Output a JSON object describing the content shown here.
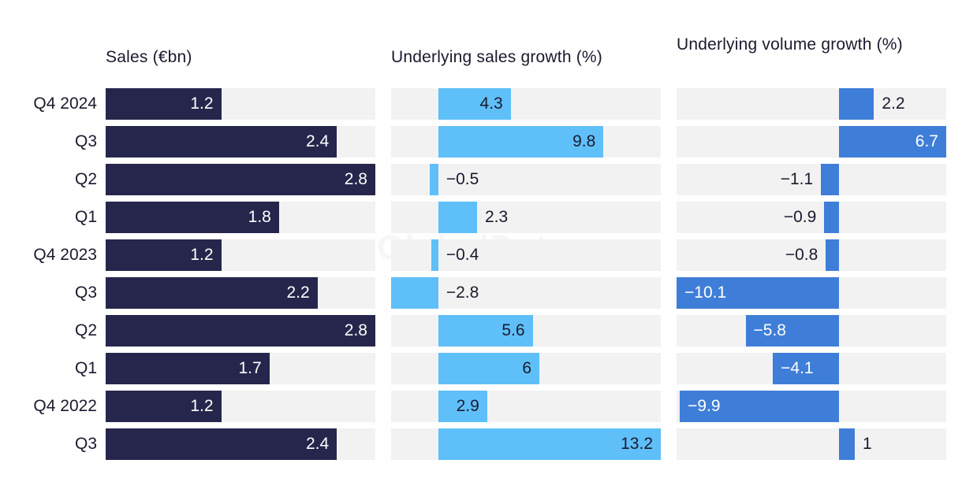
{
  "watermark": "GlobalData",
  "colors": {
    "sales": "#26264d",
    "sales_growth": "#5fbff8",
    "volume_growth": "#3f7ed8",
    "track": "#f2f2f2",
    "text_dark": "#1a1a2e",
    "text_light": "#ffffff"
  },
  "chart_data": [
    {
      "type": "bar",
      "orientation": "horizontal",
      "title": "Sales (€bn)",
      "categories": [
        "Q4 2024",
        "Q3",
        "Q2",
        "Q1",
        "Q4 2023",
        "Q3",
        "Q2",
        "Q1",
        "Q4 2022",
        "Q3"
      ],
      "values": [
        1.2,
        2.4,
        2.8,
        1.8,
        1.2,
        2.2,
        2.8,
        1.7,
        1.2,
        2.4
      ],
      "labels": [
        "1.2",
        "2.4",
        "2.8",
        "1.8",
        "1.2",
        "2.2",
        "2.8",
        "1.7",
        "1.2",
        "2.4"
      ],
      "xlim": [
        0,
        2.8
      ]
    },
    {
      "type": "bar",
      "orientation": "horizontal",
      "title": "Underlying sales growth (%)",
      "categories": [
        "Q4 2024",
        "Q3",
        "Q2",
        "Q1",
        "Q4 2023",
        "Q3",
        "Q2",
        "Q1",
        "Q4 2022",
        "Q3"
      ],
      "values": [
        4.3,
        9.8,
        -0.5,
        2.3,
        -0.4,
        -2.8,
        5.6,
        6,
        2.9,
        13.2
      ],
      "labels": [
        "4.3",
        "9.8",
        "−0.5",
        "2.3",
        "−0.4",
        "−2.8",
        "5.6",
        "6",
        "2.9",
        "13.2"
      ],
      "xlim": [
        -2.8,
        13.2
      ]
    },
    {
      "type": "bar",
      "orientation": "horizontal",
      "title": "Underlying volume growth (%)",
      "categories": [
        "Q4 2024",
        "Q3",
        "Q2",
        "Q1",
        "Q4 2023",
        "Q3",
        "Q2",
        "Q1",
        "Q4 2022",
        "Q3"
      ],
      "values": [
        2.2,
        6.7,
        -1.1,
        -0.9,
        -0.8,
        -10.1,
        -5.8,
        -4.1,
        -9.9,
        1
      ],
      "labels": [
        "2.2",
        "6.7",
        "−1.1",
        "−0.9",
        "−0.8",
        "−10.1",
        "−5.8",
        "−4.1",
        "−9.9",
        "1"
      ],
      "xlim": [
        -10.1,
        6.7
      ]
    }
  ]
}
